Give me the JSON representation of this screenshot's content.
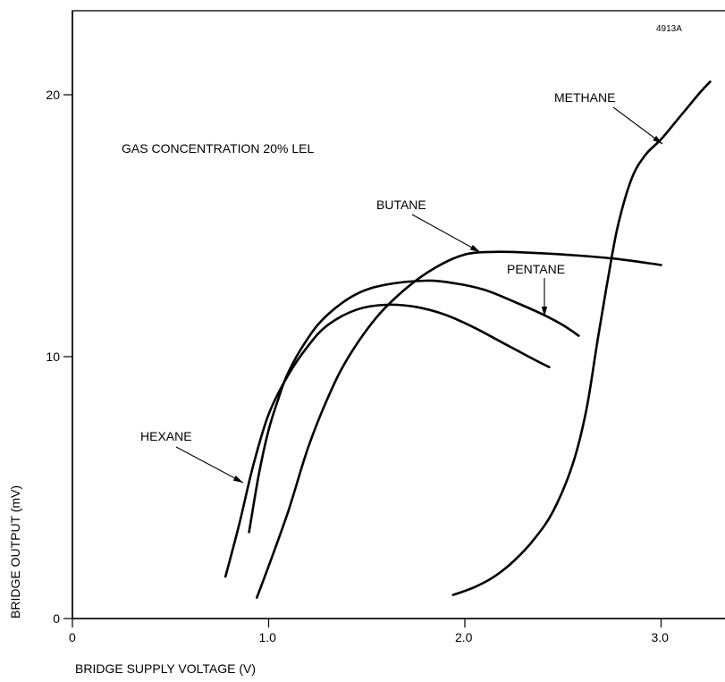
{
  "chart_data": {
    "type": "line",
    "figure_id": "4913A",
    "annotation": "GAS CONCENTRATION 20% LEL",
    "xlabel": "BRIDGE SUPPLY VOLTAGE (V)",
    "ylabel": "BRIDGE OUTPUT (mV)",
    "xlim": [
      0,
      3.3
    ],
    "ylim": [
      0,
      23
    ],
    "xticks": [
      {
        "value": 0,
        "label": "0"
      },
      {
        "value": 1,
        "label": "1.0"
      },
      {
        "value": 2,
        "label": "2.0"
      },
      {
        "value": 3,
        "label": "3.0"
      }
    ],
    "yticks": [
      {
        "value": 0,
        "label": "0"
      },
      {
        "value": 10,
        "label": "10"
      },
      {
        "value": 20,
        "label": "20"
      }
    ],
    "grid": false,
    "series": [
      {
        "name": "METHANE",
        "x": [
          1.94,
          2.05,
          2.15,
          2.25,
          2.35,
          2.45,
          2.55,
          2.62,
          2.68,
          2.73,
          2.78,
          2.85,
          2.92,
          3.0,
          3.1,
          3.2,
          3.25
        ],
        "y": [
          0.9,
          1.2,
          1.6,
          2.2,
          3.0,
          4.1,
          5.9,
          8.0,
          10.8,
          13.0,
          15.0,
          16.8,
          17.7,
          18.3,
          19.2,
          20.1,
          20.5
        ]
      },
      {
        "name": "BUTANE",
        "x": [
          0.94,
          1.0,
          1.1,
          1.2,
          1.3,
          1.4,
          1.55,
          1.7,
          1.85,
          2.0,
          2.15,
          2.3,
          2.5,
          2.75,
          3.0
        ],
        "y": [
          0.8,
          2.0,
          4.1,
          6.5,
          8.4,
          9.9,
          11.5,
          12.6,
          13.4,
          13.9,
          14.0,
          13.98,
          13.9,
          13.75,
          13.5
        ]
      },
      {
        "name": "PENTANE",
        "x": [
          0.9,
          0.95,
          1.0,
          1.05,
          1.1,
          1.2,
          1.3,
          1.45,
          1.6,
          1.8,
          1.95,
          2.1,
          2.25,
          2.4,
          2.5,
          2.58
        ],
        "y": [
          3.3,
          5.5,
          7.2,
          8.4,
          9.4,
          10.7,
          11.6,
          12.4,
          12.75,
          12.9,
          12.8,
          12.55,
          12.1,
          11.6,
          11.2,
          10.8
        ]
      },
      {
        "name": "HEXANE",
        "x": [
          0.78,
          0.85,
          0.92,
          1.0,
          1.1,
          1.2,
          1.3,
          1.45,
          1.6,
          1.75,
          1.9,
          2.05,
          2.2,
          2.35,
          2.43
        ],
        "y": [
          1.6,
          3.6,
          5.8,
          7.8,
          9.3,
          10.4,
          11.2,
          11.8,
          11.98,
          11.9,
          11.6,
          11.1,
          10.5,
          9.9,
          9.6
        ]
      }
    ],
    "labels": [
      {
        "series": "METHANE",
        "text": "METHANE"
      },
      {
        "series": "BUTANE",
        "text": "BUTANE"
      },
      {
        "series": "PENTANE",
        "text": "PENTANE"
      },
      {
        "series": "HEXANE",
        "text": "HEXANE"
      }
    ]
  }
}
